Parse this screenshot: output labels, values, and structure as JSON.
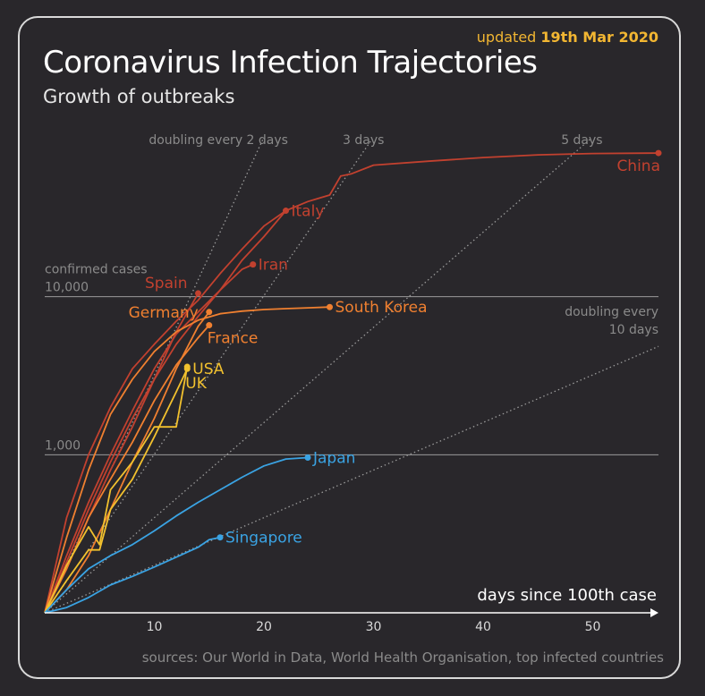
{
  "header": {
    "updated_prefix": "updated",
    "updated_date": "19th Mar 2020",
    "title": "Coronavirus Infection Trajectories",
    "subtitle": "Growth of outbreaks"
  },
  "footer": {
    "sources": "sources: Our World in Data, World Health Organisation, top infected countries"
  },
  "colors": {
    "background": "#29272b",
    "border": "#d9d9d9",
    "accent": "#f2b632",
    "red": "#c2412f",
    "orange": "#f08030",
    "yellow": "#f2c12e",
    "blue": "#3aa3e3",
    "grid": "#9a9a9a",
    "text_grey": "#8a8a8a"
  },
  "chart_data": {
    "type": "line",
    "scale": "log",
    "xlabel": "days since 100th case",
    "ylabel": "confirmed cases",
    "xlim": [
      0,
      56
    ],
    "ylim": [
      100,
      100000
    ],
    "xticks": [
      10,
      20,
      30,
      40,
      50
    ],
    "yticks": [
      {
        "value": 1000,
        "label": "1,000"
      },
      {
        "value": 10000,
        "label": "10,000"
      }
    ],
    "doubling_lines": [
      {
        "label": "doubling every 2 days",
        "days": 2
      },
      {
        "label": "3 days",
        "days": 3
      },
      {
        "label": "5 days",
        "days": 5
      },
      {
        "label": "doubling every",
        "label2": "10 days",
        "days": 10
      }
    ],
    "series": [
      {
        "name": "China",
        "color_key": "red",
        "x": [
          0,
          2,
          4,
          6,
          8,
          10,
          12,
          14,
          16,
          18,
          20,
          22,
          24,
          25,
          26,
          27,
          28,
          30,
          35,
          40,
          45,
          50,
          55,
          56
        ],
        "y": [
          100,
          400,
          1000,
          2000,
          3500,
          5000,
          7000,
          9500,
          14000,
          20000,
          28000,
          35000,
          40000,
          42000,
          44000,
          58000,
          60000,
          68000,
          72000,
          76000,
          79000,
          80500,
          81000,
          81100
        ]
      },
      {
        "name": "Italy",
        "color_key": "red",
        "x": [
          0,
          2,
          4,
          6,
          8,
          10,
          12,
          14,
          16,
          18,
          20,
          22
        ],
        "y": [
          100,
          210,
          450,
          900,
          1700,
          3000,
          5000,
          7500,
          11000,
          17000,
          24000,
          35000
        ]
      },
      {
        "name": "Iran",
        "color_key": "red",
        "x": [
          0,
          2,
          4,
          6,
          8,
          10,
          12,
          14,
          16,
          18,
          19
        ],
        "y": [
          100,
          230,
          500,
          1000,
          1900,
          3500,
          5800,
          8000,
          11000,
          14900,
          16000
        ]
      },
      {
        "name": "Spain",
        "color_key": "red",
        "x": [
          0,
          2,
          4,
          6,
          8,
          10,
          12,
          14
        ],
        "y": [
          100,
          190,
          400,
          800,
          1500,
          3000,
          6000,
          10500
        ]
      },
      {
        "name": "Germany",
        "color_key": "orange",
        "x": [
          0,
          2,
          4,
          6,
          8,
          10,
          12,
          14,
          15
        ],
        "y": [
          100,
          140,
          230,
          450,
          900,
          1700,
          3500,
          6500,
          8000
        ]
      },
      {
        "name": "France",
        "color_key": "orange",
        "x": [
          0,
          2,
          4,
          6,
          8,
          10,
          12,
          14,
          15
        ],
        "y": [
          100,
          190,
          400,
          700,
          1200,
          2200,
          3700,
          5500,
          6600
        ]
      },
      {
        "name": "South Korea",
        "color_key": "orange",
        "x": [
          0,
          2,
          4,
          6,
          8,
          10,
          12,
          14,
          16,
          18,
          20,
          22,
          24,
          26
        ],
        "y": [
          100,
          300,
          800,
          1800,
          3000,
          4500,
          6000,
          7100,
          7800,
          8100,
          8300,
          8400,
          8500,
          8600
        ]
      },
      {
        "name": "USA",
        "color_key": "yellow",
        "x": [
          0,
          2,
          4,
          5,
          6,
          8,
          10,
          12,
          13
        ],
        "y": [
          100,
          160,
          250,
          250,
          450,
          700,
          1300,
          2500,
          3500
        ]
      },
      {
        "name": "UK",
        "color_key": "yellow",
        "x": [
          0,
          2,
          4,
          5,
          6,
          8,
          10,
          11,
          12,
          13
        ],
        "y": [
          100,
          200,
          350,
          270,
          600,
          900,
          1500,
          1500,
          1500,
          3600
        ]
      },
      {
        "name": "Japan",
        "color_key": "blue",
        "x": [
          0,
          2,
          4,
          6,
          8,
          10,
          12,
          14,
          16,
          18,
          20,
          22,
          24
        ],
        "y": [
          100,
          140,
          190,
          230,
          270,
          330,
          410,
          500,
          600,
          720,
          850,
          940,
          960
        ]
      },
      {
        "name": "Singapore",
        "color_key": "blue",
        "x": [
          0,
          2,
          4,
          6,
          8,
          10,
          12,
          14,
          15,
          16
        ],
        "y": [
          100,
          108,
          125,
          150,
          170,
          195,
          225,
          260,
          290,
          300
        ]
      }
    ]
  }
}
